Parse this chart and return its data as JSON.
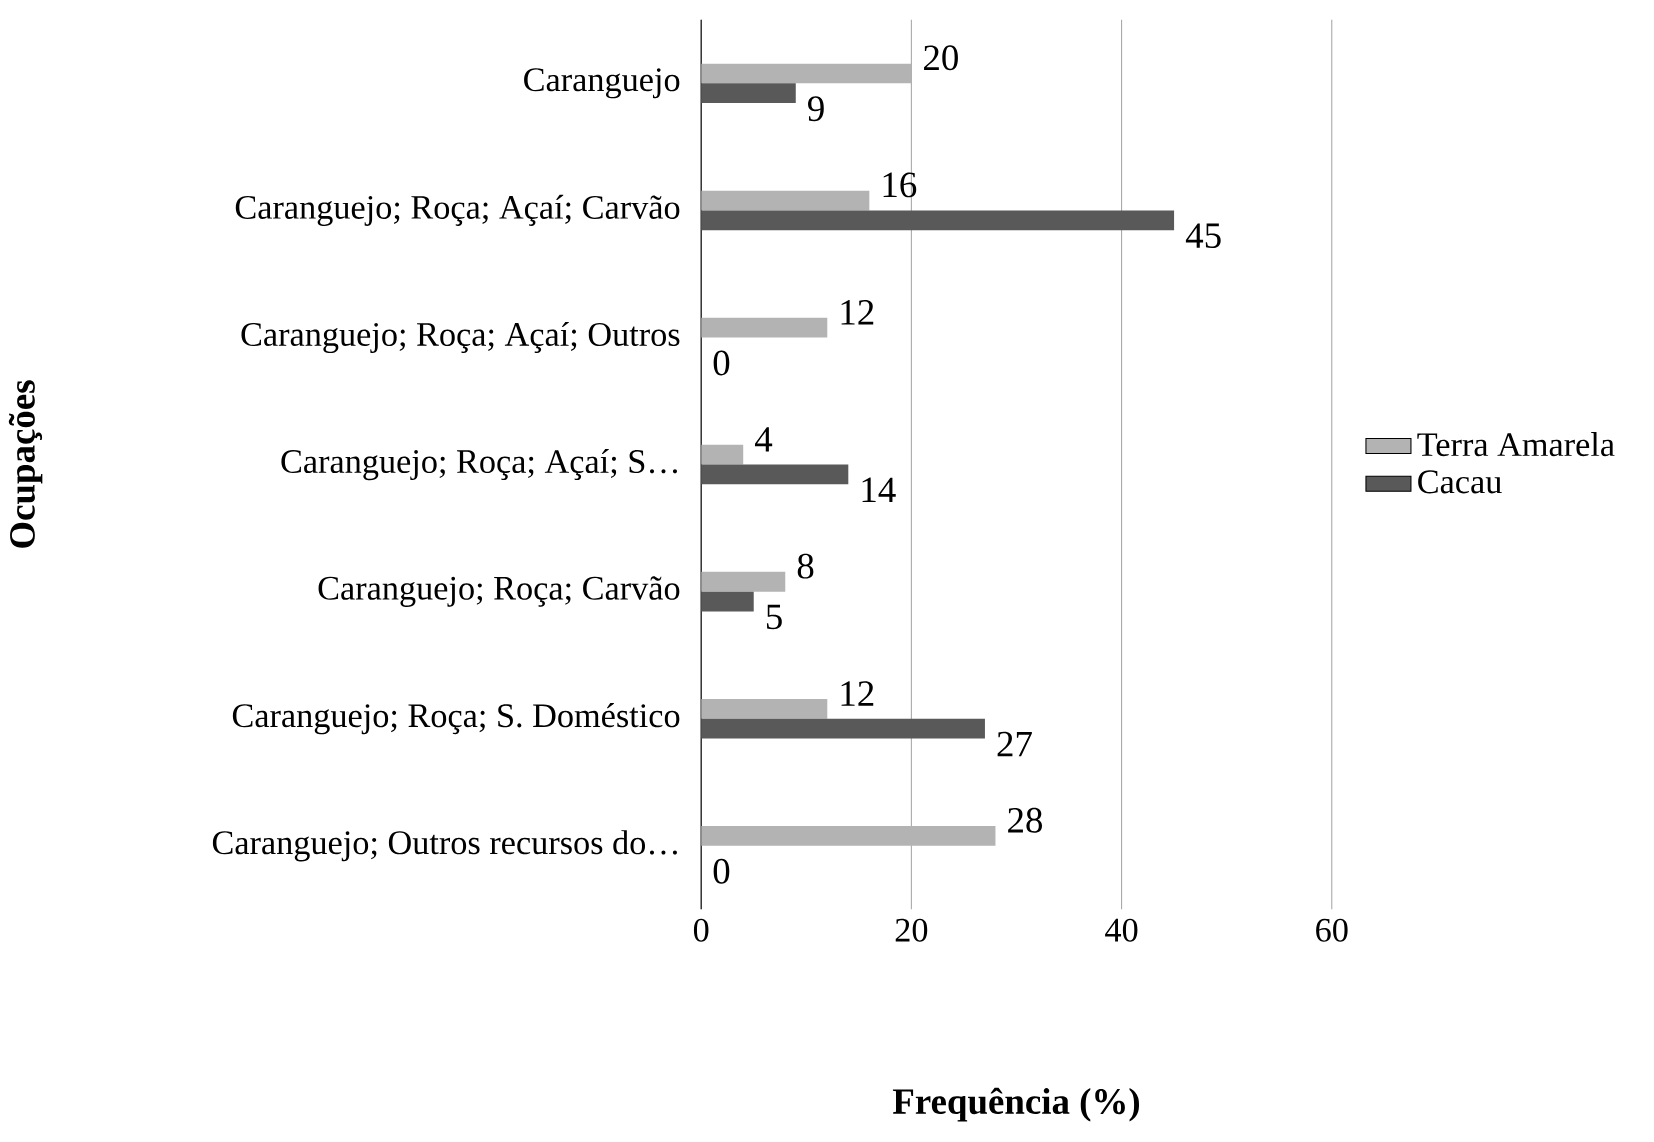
{
  "chart_data": {
    "type": "bar",
    "orientation": "horizontal",
    "xlabel": "Frequência (%)",
    "ylabel": "Ocupações",
    "categories": [
      "Caranguejo",
      "Caranguejo; Roça; Açaí; Carvão",
      "Caranguejo; Roça; Açaí; Outros",
      "Caranguejo; Roça; Açaí; S…",
      "Caranguejo; Roça; Carvão",
      "Caranguejo; Roça; S. Doméstico",
      "Caranguejo; Outros recursos do…"
    ],
    "series": [
      {
        "name": "Terra Amarela",
        "color": "#b3b3b3",
        "values": [
          20,
          16,
          12,
          4,
          8,
          12,
          28
        ]
      },
      {
        "name": "Cacau",
        "color": "#595959",
        "values": [
          9,
          45,
          0,
          14,
          5,
          27,
          0
        ]
      }
    ],
    "xlim": [
      0,
      60
    ],
    "xticks": [
      0,
      20,
      40,
      60
    ],
    "grid": "x",
    "legend": "right",
    "data_labels": true
  }
}
